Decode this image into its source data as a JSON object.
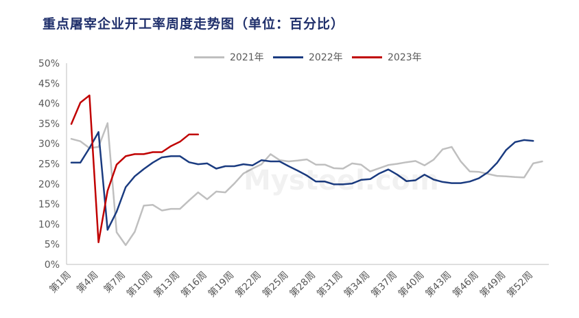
{
  "chart_data": {
    "type": "line",
    "title": "重点屠宰企业开工率周度走势图（单位：百分比）",
    "xlabel": "",
    "ylabel": "",
    "ylim": [
      0,
      50
    ],
    "yticks": [
      "0%",
      "5%",
      "10%",
      "15%",
      "20%",
      "25%",
      "30%",
      "35%",
      "40%",
      "45%",
      "50%"
    ],
    "xticks": [
      "第1周",
      "第4周",
      "第7周",
      "第10周",
      "第13周",
      "第16周",
      "第19周",
      "第22周",
      "第25周",
      "第28周",
      "第31周",
      "第34周",
      "第37周",
      "第40周",
      "第43周",
      "第46周",
      "第49周",
      "第52周"
    ],
    "xtick_weeks": [
      1,
      4,
      7,
      10,
      13,
      16,
      19,
      22,
      25,
      28,
      31,
      34,
      37,
      40,
      43,
      46,
      49,
      52
    ],
    "legend_position": "top",
    "grid": false,
    "series": [
      {
        "name": "2021年",
        "color": "#bfbfbf",
        "values": [
          31.2,
          30.6,
          28.9,
          29.2,
          35.1,
          8.0,
          4.8,
          8.1,
          14.6,
          14.8,
          13.4,
          13.8,
          13.8,
          15.9,
          17.9,
          16.2,
          18.1,
          17.9,
          20.1,
          22.6,
          23.8,
          24.9,
          27.4,
          25.9,
          25.6,
          25.8,
          26.1,
          24.8,
          24.8,
          23.9,
          23.8,
          25.1,
          24.8,
          23.1,
          23.9,
          24.7,
          25.0,
          25.4,
          25.7,
          24.6,
          26.0,
          28.6,
          29.2,
          25.6,
          23.1,
          23.0,
          22.5,
          22.0,
          21.9,
          21.7,
          21.6,
          25.1,
          25.6
        ]
      },
      {
        "name": "2022年",
        "color": "#1a3b80",
        "values": [
          25.3,
          25.3,
          28.9,
          32.9,
          8.6,
          13.1,
          19.2,
          21.9,
          23.7,
          25.3,
          26.6,
          26.9,
          26.9,
          25.4,
          24.9,
          25.1,
          23.8,
          24.4,
          24.4,
          24.9,
          24.6,
          25.9,
          25.6,
          25.6,
          24.4,
          23.3,
          22.1,
          20.6,
          20.6,
          19.9,
          19.9,
          20.1,
          21.0,
          21.2,
          22.6,
          23.6,
          22.3,
          20.7,
          20.9,
          22.3,
          21.1,
          20.5,
          20.2,
          20.2,
          20.6,
          21.4,
          22.9,
          25.2,
          28.4,
          30.4,
          30.9,
          30.7
        ]
      },
      {
        "name": "2023年",
        "color": "#c00000",
        "values": [
          34.9,
          40.2,
          42.0,
          5.5,
          18.3,
          24.8,
          26.9,
          27.4,
          27.4,
          27.9,
          27.9,
          29.4,
          30.5,
          32.3,
          32.3
        ]
      }
    ]
  },
  "watermark": "Mysteel.com"
}
